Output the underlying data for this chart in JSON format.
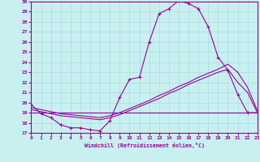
{
  "xlabel": "Windchill (Refroidissement éolien,°C)",
  "background_color": "#c8f0f0",
  "grid_color": "#aadddd",
  "line_color": "#990099",
  "ylim": [
    17,
    30
  ],
  "xlim": [
    0,
    23
  ],
  "yticks": [
    17,
    18,
    19,
    20,
    21,
    22,
    23,
    24,
    25,
    26,
    27,
    28,
    29,
    30
  ],
  "xticks": [
    0,
    1,
    2,
    3,
    4,
    5,
    6,
    7,
    8,
    9,
    10,
    11,
    12,
    13,
    14,
    15,
    16,
    17,
    18,
    19,
    20,
    21,
    22,
    23
  ],
  "line1_x": [
    0,
    1,
    2,
    3,
    4,
    5,
    6,
    7,
    8,
    9,
    10,
    11,
    12,
    13,
    14,
    15,
    16,
    17,
    18,
    19,
    20,
    21,
    22,
    23
  ],
  "line1_y": [
    19.8,
    18.9,
    18.5,
    17.8,
    17.5,
    17.5,
    17.3,
    17.2,
    18.2,
    20.5,
    22.3,
    22.5,
    26.0,
    28.8,
    29.3,
    30.1,
    29.8,
    29.3,
    27.5,
    24.5,
    23.2,
    20.8,
    19.0,
    19.0
  ],
  "line2_x": [
    0,
    1,
    2,
    3,
    4,
    5,
    6,
    7,
    8,
    9,
    10,
    11,
    12,
    13,
    14,
    15,
    16,
    17,
    18,
    19,
    20,
    21,
    22,
    23
  ],
  "line2_y": [
    19.3,
    19.1,
    18.9,
    18.7,
    18.6,
    18.5,
    18.4,
    18.3,
    18.5,
    18.8,
    19.2,
    19.6,
    20.0,
    20.4,
    20.9,
    21.3,
    21.8,
    22.2,
    22.6,
    23.0,
    23.3,
    22.0,
    21.0,
    19.0
  ],
  "line3_x": [
    0,
    1,
    2,
    3,
    4,
    5,
    6,
    7,
    8,
    9,
    10,
    11,
    12,
    13,
    14,
    15,
    16,
    17,
    18,
    19,
    20,
    21,
    22,
    23
  ],
  "line3_y": [
    19.5,
    19.3,
    19.1,
    18.9,
    18.8,
    18.7,
    18.6,
    18.5,
    18.7,
    19.0,
    19.4,
    19.8,
    20.2,
    20.7,
    21.1,
    21.6,
    22.0,
    22.5,
    22.9,
    23.3,
    23.8,
    23.0,
    21.5,
    19.2
  ],
  "line4_x": [
    0,
    23
  ],
  "line4_y": [
    19.0,
    19.0
  ]
}
